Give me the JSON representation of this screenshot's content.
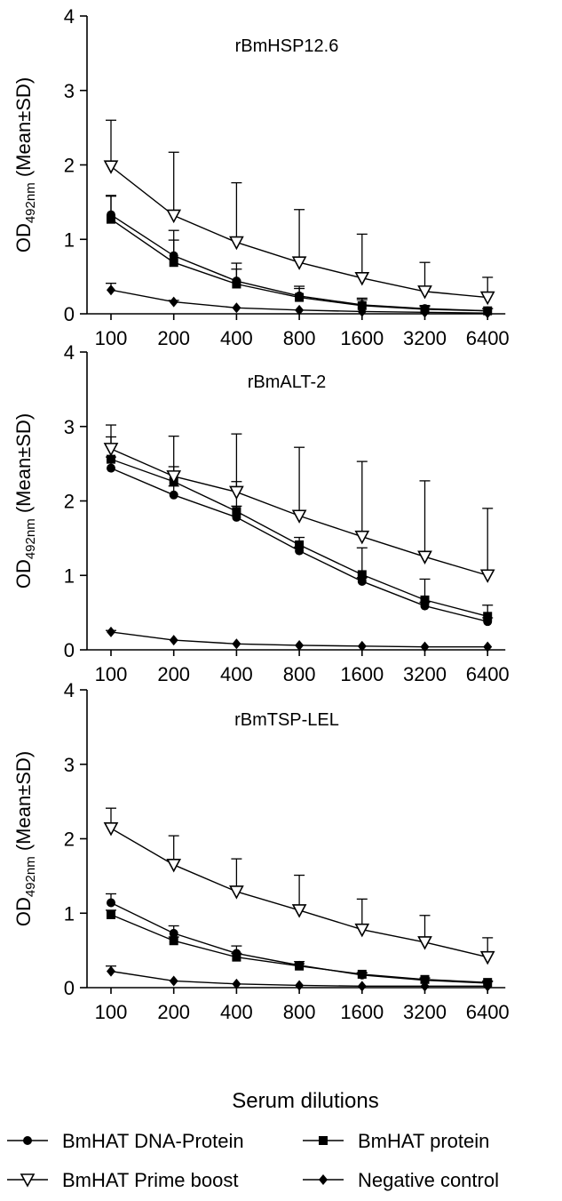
{
  "colors": {
    "ink": "#000000",
    "background": "#ffffff"
  },
  "shared": {
    "ylabel_main": "OD",
    "ylabel_sub": "492nm",
    "ylabel_tail": " (Mean±SD)",
    "xlabel": "Serum dilutions"
  },
  "legend": {
    "items": [
      {
        "label": "BmHAT DNA-Protein",
        "marker": "circle-filled"
      },
      {
        "label": "BmHAT protein",
        "marker": "square-filled"
      },
      {
        "label": "BmHAT Prime boost",
        "marker": "triangle-down-open"
      },
      {
        "label": "Negative control",
        "marker": "diamond-filled"
      }
    ]
  },
  "chart_data": [
    {
      "type": "line",
      "title": "rBmHSP12.6",
      "categories": [
        "100",
        "200",
        "400",
        "800",
        "1600",
        "3200",
        "6400"
      ],
      "yticks": [
        "0",
        "1",
        "2",
        "3",
        "4"
      ],
      "ylim": [
        0,
        4
      ],
      "grid": false,
      "series": [
        {
          "name": "BmHAT DNA-Protein",
          "marker": "circle-filled",
          "values": [
            1.33,
            0.78,
            0.44,
            0.24,
            0.12,
            0.07,
            0.04
          ],
          "sd": [
            0.25,
            0.34,
            0.24,
            0.13,
            0.09,
            0.04,
            0.03
          ]
        },
        {
          "name": "BmHAT protein",
          "marker": "square-filled",
          "values": [
            1.27,
            0.69,
            0.4,
            0.22,
            0.11,
            0.06,
            0.04
          ],
          "sd": [
            0.32,
            0.3,
            0.2,
            0.12,
            0.08,
            0.04,
            0.03
          ]
        },
        {
          "name": "BmHAT Prime boost",
          "marker": "triangle-down-open",
          "values": [
            1.98,
            1.32,
            0.96,
            0.69,
            0.48,
            0.3,
            0.22
          ],
          "sd": [
            0.62,
            0.85,
            0.8,
            0.71,
            0.59,
            0.39,
            0.27
          ]
        },
        {
          "name": "Negative control",
          "marker": "diamond-filled",
          "values": [
            0.32,
            0.16,
            0.08,
            0.05,
            0.03,
            0.02,
            0.01
          ],
          "sd": [
            0.09,
            0.02,
            0.01,
            0.01,
            0.01,
            0.01,
            0.01
          ]
        }
      ]
    },
    {
      "type": "line",
      "title": "rBmALT-2",
      "categories": [
        "100",
        "200",
        "400",
        "800",
        "1600",
        "3200",
        "6400"
      ],
      "yticks": [
        "0",
        "1",
        "2",
        "3",
        "4"
      ],
      "ylim": [
        0,
        4
      ],
      "grid": false,
      "series": [
        {
          "name": "BmHAT DNA-Protein",
          "marker": "circle-filled",
          "values": [
            2.44,
            2.08,
            1.78,
            1.33,
            0.92,
            0.59,
            0.38
          ],
          "sd": [
            0.15,
            0.12,
            0.15,
            0.05,
            0.05,
            0.05,
            0.05
          ]
        },
        {
          "name": "BmHAT protein",
          "marker": "square-filled",
          "values": [
            2.56,
            2.26,
            1.86,
            1.41,
            1.01,
            0.67,
            0.45
          ],
          "sd": [
            0.3,
            0.2,
            0.4,
            0.1,
            0.36,
            0.28,
            0.15
          ]
        },
        {
          "name": "BmHAT Prime boost",
          "marker": "triangle-down-open",
          "values": [
            2.7,
            2.33,
            2.12,
            1.8,
            1.52,
            1.25,
            1.0
          ],
          "sd": [
            0.32,
            0.54,
            0.78,
            0.92,
            1.01,
            1.02,
            0.9
          ]
        },
        {
          "name": "Negative control",
          "marker": "diamond-filled",
          "values": [
            0.24,
            0.13,
            0.08,
            0.06,
            0.05,
            0.04,
            0.04
          ],
          "sd": [
            0.02,
            0.01,
            0.01,
            0.01,
            0.01,
            0.01,
            0.01
          ]
        }
      ]
    },
    {
      "type": "line",
      "title": "rBmTSP-LEL",
      "categories": [
        "100",
        "200",
        "400",
        "800",
        "1600",
        "3200",
        "6400"
      ],
      "yticks": [
        "0",
        "1",
        "2",
        "3",
        "4"
      ],
      "ylim": [
        0,
        4
      ],
      "grid": false,
      "series": [
        {
          "name": "BmHAT DNA-Protein",
          "marker": "circle-filled",
          "values": [
            1.14,
            0.73,
            0.46,
            0.3,
            0.17,
            0.1,
            0.06
          ],
          "sd": [
            0.12,
            0.1,
            0.1,
            0.05,
            0.03,
            0.03,
            0.02
          ]
        },
        {
          "name": "BmHAT protein",
          "marker": "square-filled",
          "values": [
            0.98,
            0.63,
            0.41,
            0.29,
            0.18,
            0.11,
            0.07
          ],
          "sd": [
            0.06,
            0.05,
            0.05,
            0.03,
            0.02,
            0.02,
            0.02
          ]
        },
        {
          "name": "BmHAT Prime boost",
          "marker": "triangle-down-open",
          "values": [
            2.14,
            1.65,
            1.29,
            1.04,
            0.78,
            0.61,
            0.41
          ],
          "sd": [
            0.27,
            0.39,
            0.44,
            0.47,
            0.41,
            0.36,
            0.26
          ]
        },
        {
          "name": "Negative control",
          "marker": "diamond-filled",
          "values": [
            0.22,
            0.09,
            0.05,
            0.03,
            0.02,
            0.02,
            0.02
          ],
          "sd": [
            0.07,
            0.01,
            0.01,
            0.01,
            0.01,
            0.01,
            0.01
          ]
        }
      ]
    }
  ]
}
